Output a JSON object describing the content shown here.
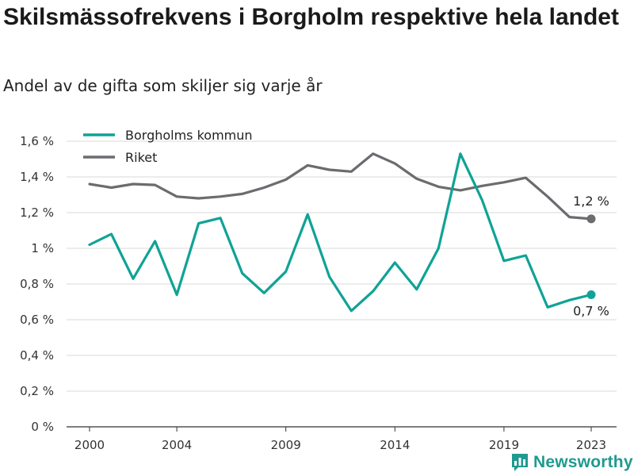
{
  "title": "Skilsmässofrekvens i Borgholm respektive hela landet",
  "subtitle": "Andel av de gifta som skiljer sig varje år",
  "brand": {
    "name": "Newsworthy",
    "color": "#1f9a8f",
    "icon": "bar-chart-logo-icon"
  },
  "chart_data": {
    "type": "line",
    "title": "Skilsmässofrekvens i Borgholm respektive hela landet",
    "subtitle": "Andel av de gifta som skiljer sig varje år",
    "xlabel": "",
    "ylabel": "",
    "x": [
      2000,
      2001,
      2002,
      2003,
      2004,
      2005,
      2006,
      2007,
      2008,
      2009,
      2010,
      2011,
      2012,
      2013,
      2014,
      2015,
      2016,
      2017,
      2018,
      2019,
      2020,
      2021,
      2022,
      2023
    ],
    "x_ticks": [
      2000,
      2004,
      2009,
      2014,
      2019,
      2023
    ],
    "x_tick_labels": [
      "2000",
      "2004",
      "2009",
      "2014",
      "2019",
      "2023"
    ],
    "ylim": [
      0,
      1.6
    ],
    "y_ticks": [
      0,
      0.2,
      0.4,
      0.6,
      0.8,
      1.0,
      1.2,
      1.4,
      1.6
    ],
    "y_tick_labels": [
      "0 %",
      "0,2 %",
      "0,4 %",
      "0,6 %",
      "0,8 %",
      "1 %",
      "1,2 %",
      "1,4 %",
      "1,6 %"
    ],
    "grid": true,
    "legend_position": "top-left",
    "series": [
      {
        "name": "Borgholms kommun",
        "color": "#0fa396",
        "values": [
          1.02,
          1.08,
          0.83,
          1.04,
          0.74,
          1.14,
          1.17,
          0.86,
          0.75,
          0.87,
          1.19,
          0.84,
          0.65,
          0.76,
          0.92,
          0.77,
          1.0,
          1.53,
          1.27,
          0.93,
          0.96,
          0.67,
          0.71,
          0.74
        ],
        "end_label": "0,7 %"
      },
      {
        "name": "Riket",
        "color": "#6b6b70",
        "values": [
          1.36,
          1.34,
          1.36,
          1.355,
          1.29,
          1.28,
          1.29,
          1.305,
          1.34,
          1.385,
          1.465,
          1.44,
          1.43,
          1.53,
          1.475,
          1.39,
          1.345,
          1.325,
          1.35,
          1.37,
          1.395,
          1.29,
          1.175,
          1.165
        ],
        "end_label": "1,2 %"
      }
    ]
  }
}
